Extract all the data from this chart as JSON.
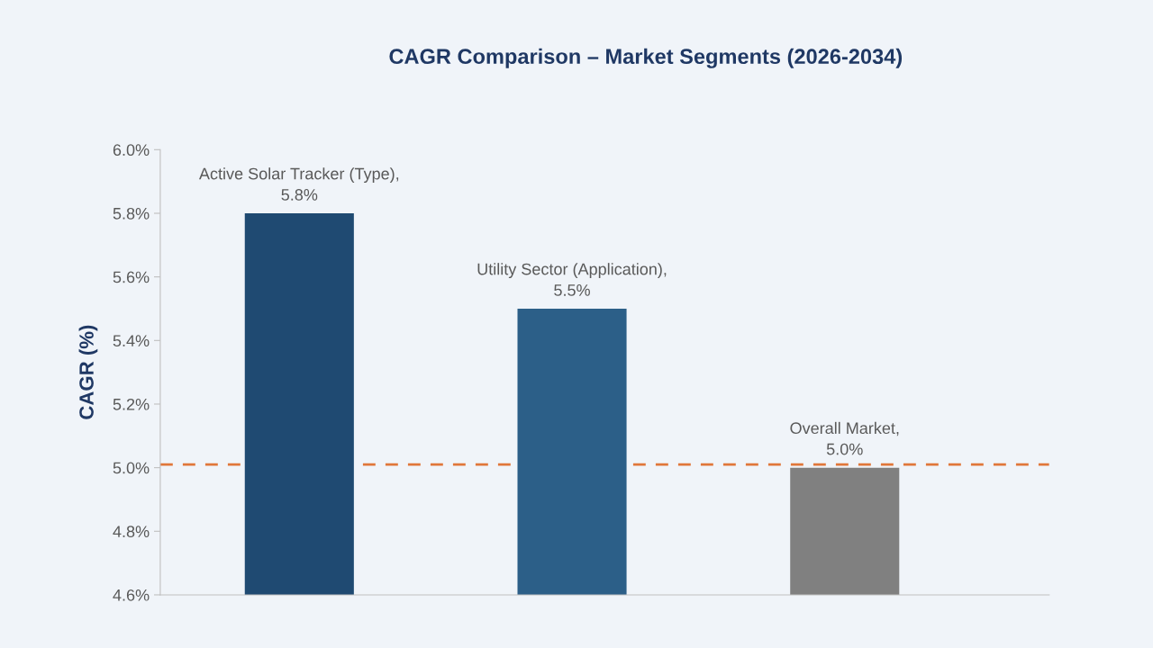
{
  "chart_data": {
    "type": "bar",
    "title": "CAGR Comparison – Market Segments (2026-2034)",
    "ylabel": "CAGR (%)",
    "categories": [
      null,
      null,
      null
    ],
    "values": [
      5.8,
      5.5,
      5.0
    ],
    "value_labels": [
      "Active Solar Tracker (Type),\n5.8%",
      "Utility Sector (Application),\n5.5%",
      "Overall Market,\n5.0%"
    ],
    "colors": [
      "#1f4a72",
      "#2c5f88",
      "#808080"
    ],
    "ylim": [
      4.6,
      6.0
    ],
    "yticks": [
      {
        "value": 4.6,
        "label": "4.6%"
      },
      {
        "value": 4.8,
        "label": "4.8%"
      },
      {
        "value": 5.0,
        "label": "5.0%"
      },
      {
        "value": 5.2,
        "label": "5.2%"
      },
      {
        "value": 5.4,
        "label": "5.4%"
      },
      {
        "value": 5.6,
        "label": "5.6%"
      },
      {
        "value": 5.8,
        "label": "5.8%"
      },
      {
        "value": 6.0,
        "label": "6.0%"
      }
    ],
    "ref_lines": [
      {
        "axis": "y",
        "value": 5.01,
        "color": "#e0773a",
        "line_style": "dashed"
      }
    ],
    "grid": false,
    "legend": false
  }
}
